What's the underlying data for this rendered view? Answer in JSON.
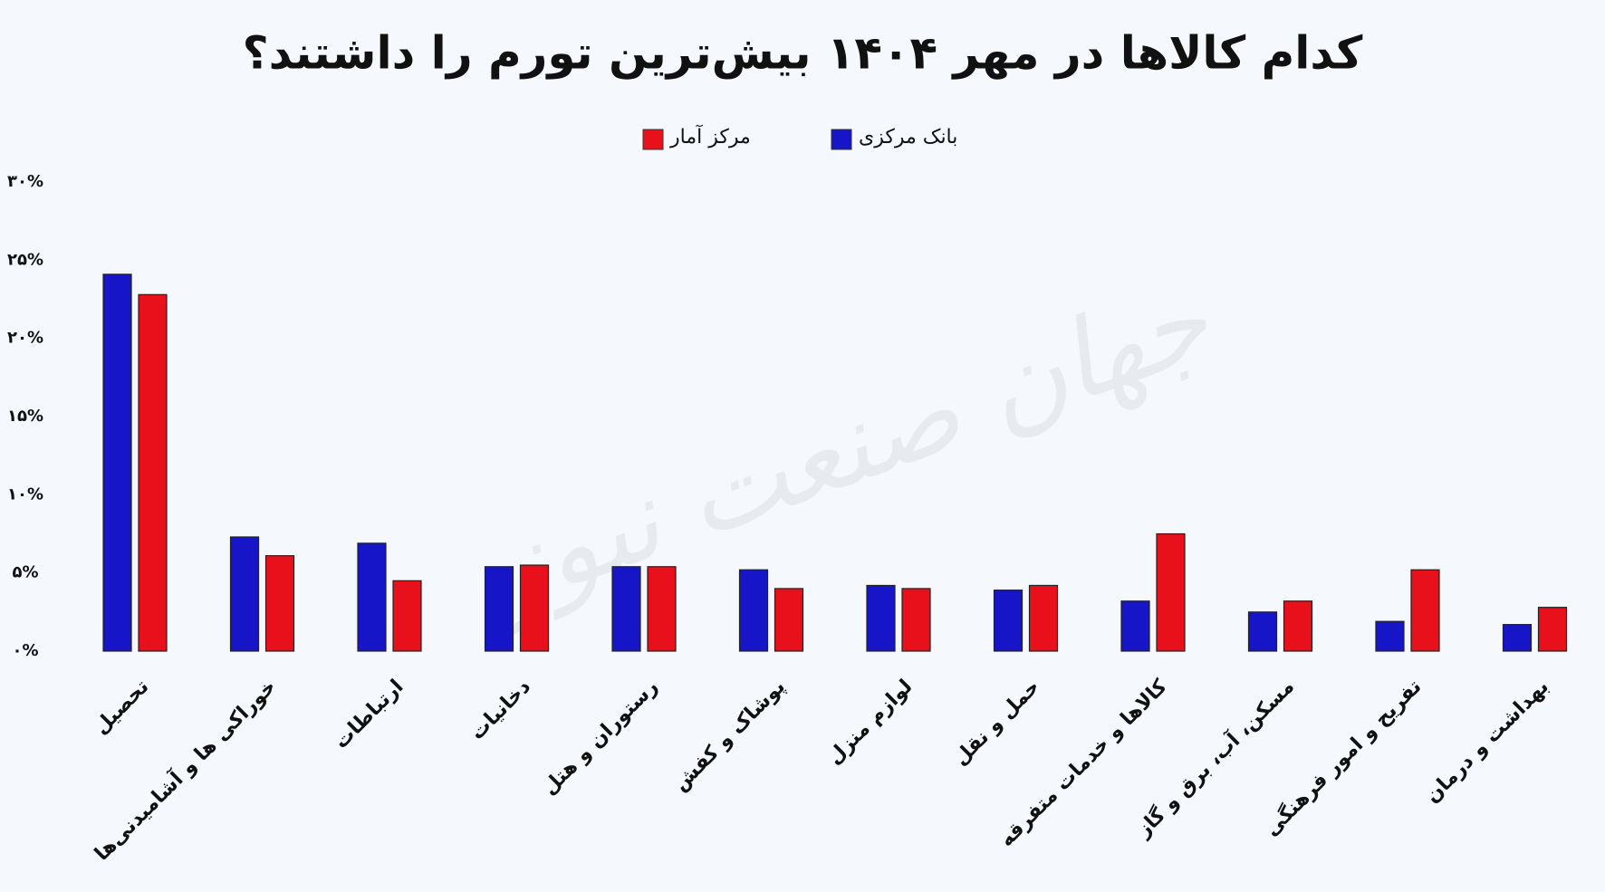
{
  "chart_data": {
    "type": "bar",
    "title": "کدام کالاها در مهر ۱۴۰۴ بیش‌ترین تورم را داشتند؟",
    "watermark": "جهان صنعت نیوز",
    "categories": [
      "تحصیل",
      "خوراکی ها و آشامیدنی‌ها",
      "ارتباطات",
      "دخانیات",
      "رستوران و هتل",
      "پوشاک و کفش",
      "لوازم منزل",
      "حمل و نقل",
      "کالاها و خدمات متفرقه",
      "مسکن، آب، برق و گاز",
      "تفریح و امور فرهنگی",
      "بهداشت و درمان"
    ],
    "series": [
      {
        "name": "بانک مرکزی",
        "color": "#1616c8",
        "values": [
          24.1,
          7.3,
          6.9,
          5.4,
          5.4,
          5.2,
          4.2,
          3.9,
          3.2,
          2.5,
          1.9,
          1.7
        ]
      },
      {
        "name": "مرکز آمار",
        "color": "#e8101a",
        "values": [
          22.8,
          6.1,
          4.5,
          5.5,
          5.4,
          4.0,
          4.0,
          4.2,
          7.5,
          3.2,
          5.2,
          2.8
        ]
      }
    ],
    "ylim": [
      0,
      30
    ],
    "yticks": [
      {
        "value": 0,
        "label": "۰%"
      },
      {
        "value": 5,
        "label": "۵%"
      },
      {
        "value": 10,
        "label": "۱۰%"
      },
      {
        "value": 15,
        "label": "۱۵%"
      },
      {
        "value": 20,
        "label": "۲۰%"
      },
      {
        "value": 25,
        "label": "۲۵%"
      },
      {
        "value": 30,
        "label": "۳۰%"
      }
    ],
    "grid": false
  }
}
